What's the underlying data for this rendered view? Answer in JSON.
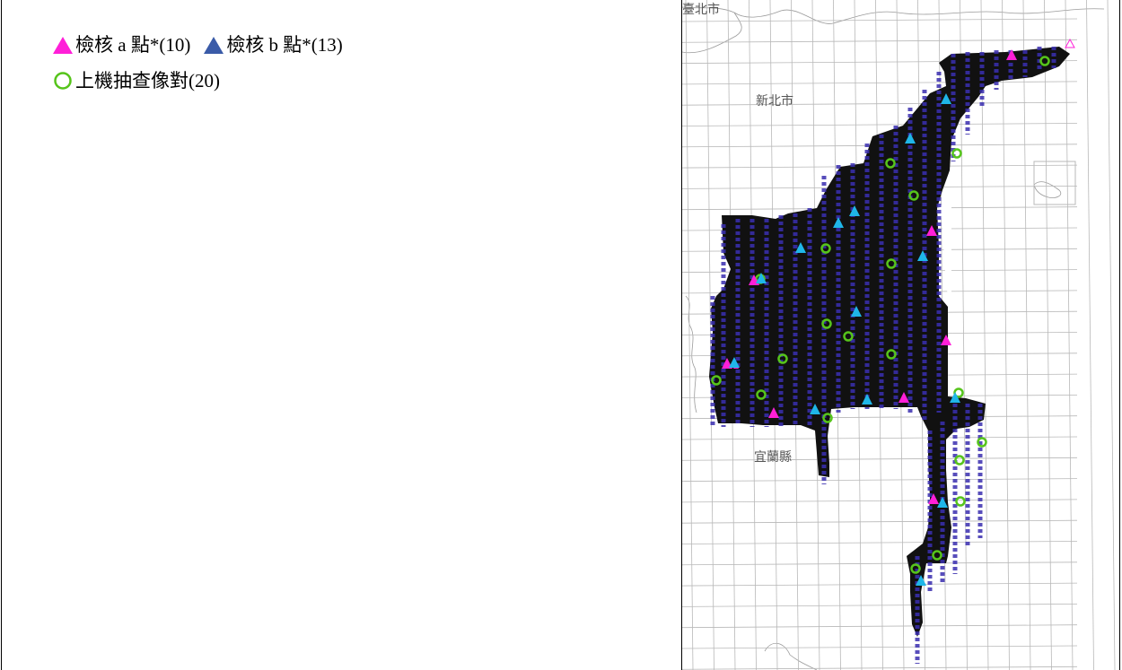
{
  "legend": {
    "check_a": "檢核 a 點*(10)",
    "check_b": "檢核 b 點*(13)",
    "airborne_pairs": "上機抽查像對(20)"
  },
  "map": {
    "labels": {
      "taipei": "臺北市",
      "new_taipei": "新北市",
      "yilan": "宜蘭縣"
    }
  },
  "colors": {
    "check_a": "#ff1fd8",
    "check_b": "#1fb6e8",
    "check_b_legend": "#3a5ba8",
    "pair_circle": "#56c41b",
    "coverage": "#111111",
    "strip": "#3a2fb0",
    "grid": "#b8b8b8"
  }
}
